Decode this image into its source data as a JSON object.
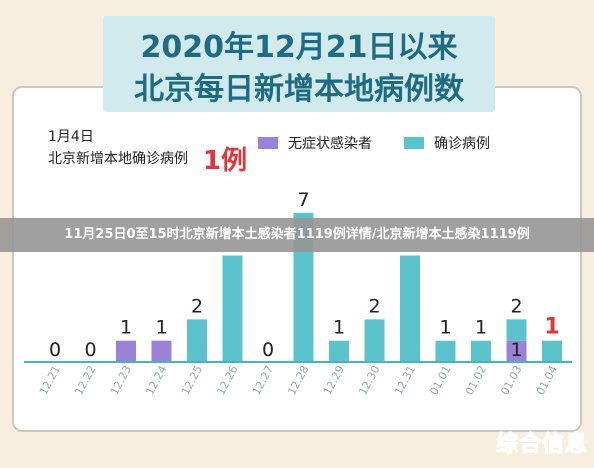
{
  "header": {
    "title_line1": "2020年12月21日以来",
    "title_line2": "北京每日新增本地病例数"
  },
  "annotation": {
    "date": "1月4日",
    "text": "北京新增本地确诊病例",
    "value": "1例"
  },
  "legend": {
    "asymptomatic": "无症状感染者",
    "confirmed": "确诊病例"
  },
  "headline": "11月25日0至15时北京新增本土感染者1119例详情/北京新增本土感染1119例",
  "watermark": "综合信息",
  "colors": {
    "confirmed": "#5cc2cc",
    "asymptomatic": "#9b82d6",
    "highlight": "#e0353a",
    "axis": "#4ab3c3"
  },
  "chart_data": {
    "type": "bar",
    "title": "北京每日新增本地病例数",
    "categories": [
      "12.21",
      "12.22",
      "12.23",
      "12.24",
      "12.25",
      "12.26",
      "12.27",
      "12.28",
      "12.29",
      "12.30",
      "12.31",
      "01.01",
      "01.02",
      "01.03",
      "01.04"
    ],
    "series": [
      {
        "name": "无症状感染者",
        "values": [
          0,
          0,
          1,
          1,
          0,
          0,
          0,
          0,
          0,
          0,
          0,
          0,
          0,
          1,
          0
        ]
      },
      {
        "name": "确诊病例",
        "values": [
          0,
          0,
          0,
          0,
          2,
          5,
          0,
          7,
          1,
          2,
          5,
          1,
          1,
          1,
          1
        ]
      }
    ],
    "labels": [
      "0",
      "0",
      "1",
      "1",
      "2",
      "",
      "0",
      "7",
      "1",
      "2",
      "",
      "1",
      "1",
      "1",
      "1"
    ],
    "stack_totals": [
      "",
      "",
      "",
      "",
      "",
      "",
      "",
      "",
      "",
      "",
      "",
      "",
      "",
      "2",
      ""
    ],
    "ylim": [
      0,
      7.5
    ],
    "legend_position": "top-right"
  }
}
